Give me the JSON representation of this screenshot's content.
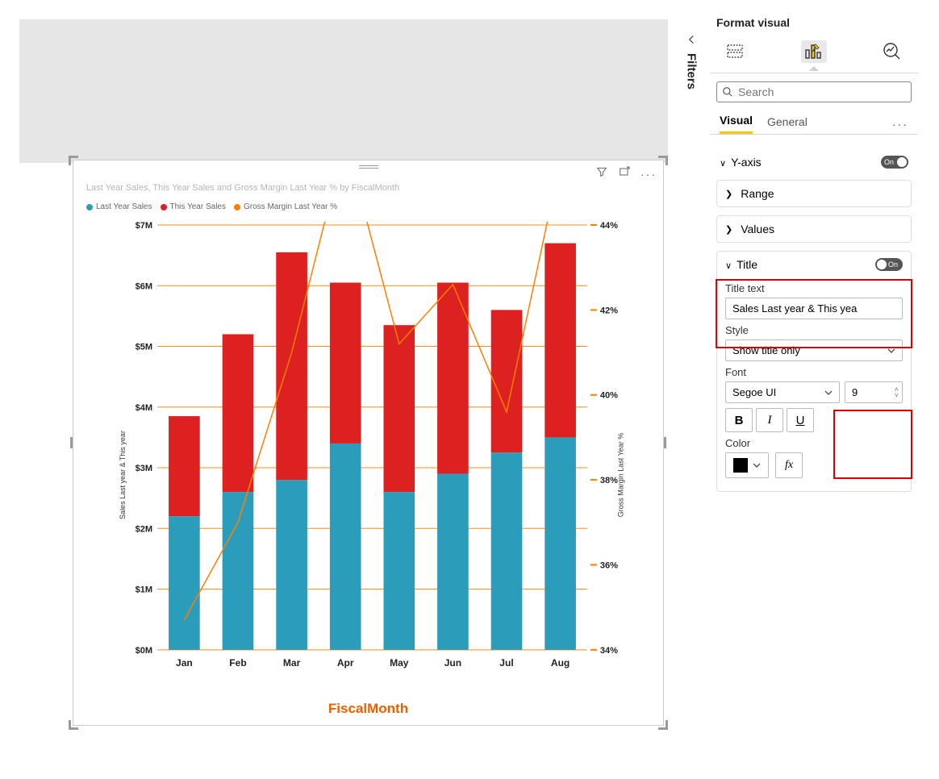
{
  "filters_label": "Filters",
  "format_pane": {
    "title": "Format visual",
    "search_placeholder": "Search",
    "tabs": {
      "visual": "Visual",
      "general": "General"
    },
    "sections": {
      "yaxis": {
        "label": "Y-axis",
        "toggle": "On",
        "range": "Range",
        "values": "Values"
      },
      "title_section": {
        "label": "Title",
        "toggle": "On",
        "title_text_label": "Title text",
        "title_text_value": "Sales Last year & This yea",
        "style_label": "Style",
        "style_value": "Show title only",
        "font_label": "Font",
        "font_family": "Segoe UI",
        "font_size": "9",
        "bold": "B",
        "italic": "I",
        "underline": "U",
        "color_label": "Color",
        "color_value": "#000000",
        "fx": "fx"
      }
    }
  },
  "chart": {
    "title": "Last Year Sales, This Year Sales and Gross Margin Last Year % by FiscalMonth",
    "legend": [
      {
        "label": "Last Year Sales",
        "color": "#2b9cb9"
      },
      {
        "label": "This Year Sales",
        "color": "#dd2020"
      },
      {
        "label": "Gross Margin Last Year %",
        "color": "#ff7f00"
      }
    ],
    "x_axis_title": "FiscalMonth",
    "x_axis_title_color": "#e86100",
    "y_left_title": "Sales Last year & This year",
    "y_right_title": "Gross Margin Last Year %",
    "y_left": {
      "min": 0,
      "max": 7,
      "ticks": [
        "$0M",
        "$1M",
        "$2M",
        "$3M",
        "$4M",
        "$5M",
        "$6M",
        "$7M"
      ]
    },
    "y_right": {
      "min": 34,
      "max": 44,
      "ticks": [
        "34%",
        "36%",
        "38%",
        "40%",
        "42%",
        "44%"
      ]
    },
    "categories": [
      "Jan",
      "Feb",
      "Mar",
      "Apr",
      "May",
      "Jun",
      "Jul",
      "Aug"
    ],
    "series_last_year": [
      2.2,
      2.6,
      2.8,
      3.4,
      2.6,
      2.9,
      3.25,
      3.5
    ],
    "series_this_year": [
      3.85,
      5.2,
      6.55,
      6.05,
      5.35,
      6.05,
      5.6,
      6.7
    ],
    "series_margin_pct": [
      34.7,
      37.0,
      41.0,
      46.0,
      41.2,
      42.6,
      39.6,
      45.5
    ],
    "colors": {
      "bar1": "#2b9cb9",
      "bar2": "#dd2020",
      "line": "#ff7f00",
      "grid": "#ff7f00",
      "text": "#222"
    },
    "bar_width": 0.58,
    "plot_bg": "#ffffff"
  }
}
